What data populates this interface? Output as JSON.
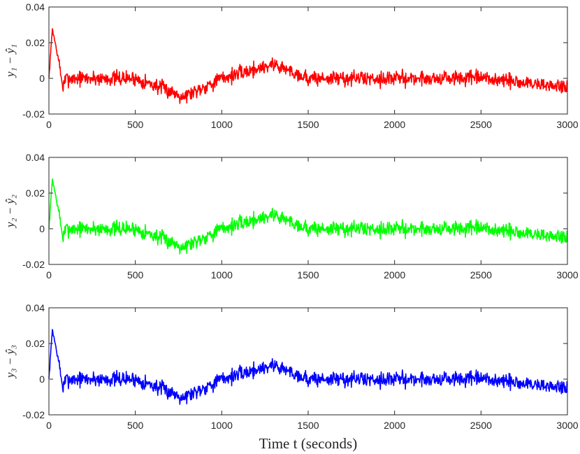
{
  "chart_data": [
    {
      "type": "line",
      "ylabel": "y₁ − ŷ₁",
      "xlim": [
        0,
        3000
      ],
      "ylim": [
        -0.02,
        0.04
      ],
      "xticks": [
        "0",
        "500",
        "1000",
        "1500",
        "2000",
        "2500",
        "3000"
      ],
      "yticks": [
        "-0.02",
        "0",
        "0.02",
        "0.04"
      ],
      "color": "#ff0000",
      "x": [
        0,
        20,
        40,
        60,
        80,
        100,
        150,
        200,
        300,
        500,
        780,
        1000,
        1300,
        1500,
        2000,
        2500,
        3000
      ],
      "values": [
        0.0,
        0.028,
        0.018,
        0.008,
        -0.005,
        0.0,
        0.0,
        0.0,
        0.0,
        0.0,
        -0.01,
        0.0,
        0.008,
        0.0,
        0.0,
        0.0,
        -0.005
      ]
    },
    {
      "type": "line",
      "ylabel": "y₂ − ŷ₂",
      "xlim": [
        0,
        3000
      ],
      "ylim": [
        -0.02,
        0.04
      ],
      "xticks": [
        "0",
        "500",
        "1000",
        "1500",
        "2000",
        "2500",
        "3000"
      ],
      "yticks": [
        "-0.02",
        "0",
        "0.02",
        "0.04"
      ],
      "color": "#00ff00",
      "x": [
        0,
        20,
        40,
        60,
        80,
        100,
        150,
        200,
        300,
        500,
        780,
        1000,
        1300,
        1500,
        2000,
        2500,
        3000
      ],
      "values": [
        0.0,
        0.028,
        0.018,
        0.008,
        -0.005,
        0.0,
        0.0,
        0.0,
        0.0,
        0.0,
        -0.01,
        0.0,
        0.008,
        0.0,
        0.0,
        0.0,
        -0.005
      ]
    },
    {
      "type": "line",
      "ylabel": "y₃ − ŷ₃",
      "xlim": [
        0,
        3000
      ],
      "ylim": [
        -0.02,
        0.04
      ],
      "xticks": [
        "0",
        "500",
        "1000",
        "1500",
        "2000",
        "2500",
        "3000"
      ],
      "yticks": [
        "-0.02",
        "0",
        "0.02",
        "0.04"
      ],
      "color": "#0000ff",
      "x": [
        0,
        20,
        40,
        60,
        80,
        100,
        150,
        200,
        300,
        500,
        780,
        1000,
        1300,
        1500,
        2000,
        2500,
        3000
      ],
      "values": [
        0.0,
        0.028,
        0.018,
        0.008,
        -0.005,
        0.0,
        0.0,
        0.0,
        0.0,
        0.0,
        -0.01,
        0.0,
        0.008,
        0.0,
        0.0,
        0.0,
        -0.005
      ]
    }
  ],
  "xlabel": "Time t (seconds)"
}
